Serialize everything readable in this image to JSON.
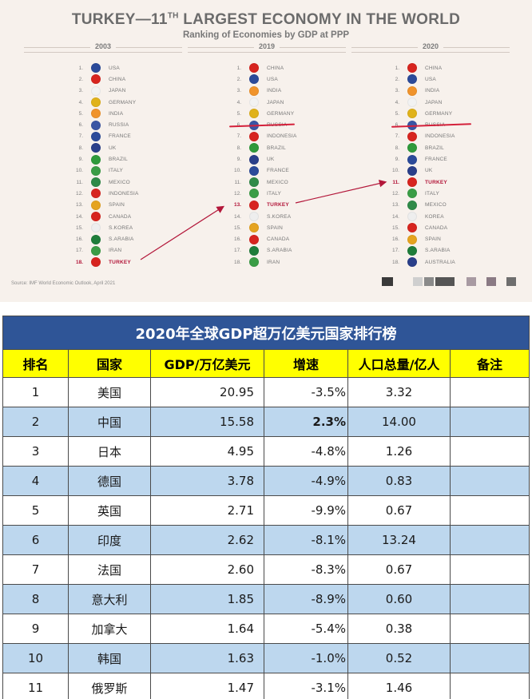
{
  "infographic": {
    "title_main": "TURKEY—11",
    "title_sup": "TH",
    "title_rest": " LARGEST ECONOMY IN THE WORLD",
    "subtitle": "Ranking of Economies by GDP at PPP",
    "source": "Source: IMF World Economic Outlook, April 2021",
    "columns": [
      {
        "year": "2003",
        "rows": [
          {
            "rank": "1.",
            "country": "USA",
            "flag": "#2b4a9a"
          },
          {
            "rank": "2.",
            "country": "CHINA",
            "flag": "#d7241f"
          },
          {
            "rank": "3.",
            "country": "JAPAN",
            "flag": "#f2f2f2"
          },
          {
            "rank": "4.",
            "country": "GERMANY",
            "flag": "#e0b21a"
          },
          {
            "rank": "5.",
            "country": "INDIA",
            "flag": "#f0932b"
          },
          {
            "rank": "6.",
            "country": "RUSSIA",
            "flag": "#3a55a4"
          },
          {
            "rank": "7.",
            "country": "FRANCE",
            "flag": "#2b4a9a"
          },
          {
            "rank": "8.",
            "country": "UK",
            "flag": "#2a3f8a"
          },
          {
            "rank": "9.",
            "country": "BRAZIL",
            "flag": "#2f9a3b"
          },
          {
            "rank": "10.",
            "country": "ITALY",
            "flag": "#3a9d46"
          },
          {
            "rank": "11.",
            "country": "MEXICO",
            "flag": "#2f8a48"
          },
          {
            "rank": "12.",
            "country": "INDONESIA",
            "flag": "#d7241f"
          },
          {
            "rank": "13.",
            "country": "SPAIN",
            "flag": "#e5a31f"
          },
          {
            "rank": "14.",
            "country": "CANADA",
            "flag": "#d7241f"
          },
          {
            "rank": "15.",
            "country": "S.KOREA",
            "flag": "#eeeeee"
          },
          {
            "rank": "16.",
            "country": "S.ARABIA",
            "flag": "#1e7d3a"
          },
          {
            "rank": "17.",
            "country": "IRAN",
            "flag": "#3a9d46"
          },
          {
            "rank": "18.",
            "country": "TURKEY",
            "flag": "#d7241f",
            "highlight": true
          }
        ]
      },
      {
        "year": "2019",
        "rows": [
          {
            "rank": "1.",
            "country": "CHINA",
            "flag": "#d7241f"
          },
          {
            "rank": "2.",
            "country": "USA",
            "flag": "#2b4a9a"
          },
          {
            "rank": "3.",
            "country": "INDIA",
            "flag": "#f0932b"
          },
          {
            "rank": "4.",
            "country": "JAPAN",
            "flag": "#f2f2f2"
          },
          {
            "rank": "5.",
            "country": "GERMANY",
            "flag": "#e0b21a"
          },
          {
            "rank": "6.",
            "country": "RUSSIA",
            "flag": "#3a55a4"
          },
          {
            "rank": "7.",
            "country": "INDONESIA",
            "flag": "#d7241f"
          },
          {
            "rank": "8.",
            "country": "BRAZIL",
            "flag": "#2f9a3b"
          },
          {
            "rank": "9.",
            "country": "UK",
            "flag": "#2a3f8a"
          },
          {
            "rank": "10.",
            "country": "FRANCE",
            "flag": "#2b4a9a"
          },
          {
            "rank": "11.",
            "country": "MEXICO",
            "flag": "#2f8a48"
          },
          {
            "rank": "12.",
            "country": "ITALY",
            "flag": "#3a9d46"
          },
          {
            "rank": "13.",
            "country": "TURKEY",
            "flag": "#d7241f",
            "highlight": true
          },
          {
            "rank": "14.",
            "country": "S.KOREA",
            "flag": "#eeeeee"
          },
          {
            "rank": "15.",
            "country": "SPAIN",
            "flag": "#e5a31f"
          },
          {
            "rank": "16.",
            "country": "CANADA",
            "flag": "#d7241f"
          },
          {
            "rank": "17.",
            "country": "S.ARABIA",
            "flag": "#1e7d3a"
          },
          {
            "rank": "18.",
            "country": "IRAN",
            "flag": "#3a9d46"
          }
        ]
      },
      {
        "year": "2020",
        "rows": [
          {
            "rank": "1.",
            "country": "CHINA",
            "flag": "#d7241f"
          },
          {
            "rank": "2.",
            "country": "USA",
            "flag": "#2b4a9a"
          },
          {
            "rank": "3.",
            "country": "INDIA",
            "flag": "#f0932b"
          },
          {
            "rank": "4.",
            "country": "JAPAN",
            "flag": "#f2f2f2"
          },
          {
            "rank": "5.",
            "country": "GERMANY",
            "flag": "#e0b21a"
          },
          {
            "rank": "6.",
            "country": "RUSSIA",
            "flag": "#3a55a4"
          },
          {
            "rank": "7.",
            "country": "INDONESIA",
            "flag": "#d7241f"
          },
          {
            "rank": "8.",
            "country": "BRAZIL",
            "flag": "#2f9a3b"
          },
          {
            "rank": "9.",
            "country": "FRANCE",
            "flag": "#2b4a9a"
          },
          {
            "rank": "10.",
            "country": "UK",
            "flag": "#2a3f8a"
          },
          {
            "rank": "11.",
            "country": "TURKEY",
            "flag": "#d7241f",
            "highlight": true
          },
          {
            "rank": "12.",
            "country": "ITALY",
            "flag": "#3a9d46"
          },
          {
            "rank": "13.",
            "country": "MEXICO",
            "flag": "#2f8a48"
          },
          {
            "rank": "14.",
            "country": "KOREA",
            "flag": "#eeeeee"
          },
          {
            "rank": "15.",
            "country": "CANADA",
            "flag": "#d7241f"
          },
          {
            "rank": "16.",
            "country": "SPAIN",
            "flag": "#e5a31f"
          },
          {
            "rank": "17.",
            "country": "S.ARABIA",
            "flag": "#1e7d3a"
          },
          {
            "rank": "18.",
            "country": "AUSTRALIA",
            "flag": "#2a3f8a"
          }
        ]
      }
    ]
  },
  "table": {
    "title": "2020年全球GDP超万亿美元国家排行榜",
    "headers": [
      "排名",
      "国家",
      "GDP/万亿美元",
      "增速",
      "人口总量/亿人",
      "备注"
    ],
    "rows": [
      {
        "rank": "1",
        "country": "美国",
        "gdp": "20.95",
        "growth": "-3.5%",
        "pop": "3.32",
        "note": ""
      },
      {
        "rank": "2",
        "country": "中国",
        "gdp": "15.58",
        "growth": "2.3%",
        "pop": "14.00",
        "note": "",
        "growth_highlight": true
      },
      {
        "rank": "3",
        "country": "日本",
        "gdp": "4.95",
        "growth": "-4.8%",
        "pop": "1.26",
        "note": ""
      },
      {
        "rank": "4",
        "country": "德国",
        "gdp": "3.78",
        "growth": "-4.9%",
        "pop": "0.83",
        "note": ""
      },
      {
        "rank": "5",
        "country": "英国",
        "gdp": "2.71",
        "growth": "-9.9%",
        "pop": "0.67",
        "note": ""
      },
      {
        "rank": "6",
        "country": "印度",
        "gdp": "2.62",
        "growth": "-8.1%",
        "pop": "13.24",
        "note": ""
      },
      {
        "rank": "7",
        "country": "法国",
        "gdp": "2.60",
        "growth": "-8.3%",
        "pop": "0.67",
        "note": ""
      },
      {
        "rank": "8",
        "country": "意大利",
        "gdp": "1.85",
        "growth": "-8.9%",
        "pop": "0.60",
        "note": ""
      },
      {
        "rank": "9",
        "country": "加拿大",
        "gdp": "1.64",
        "growth": "-5.4%",
        "pop": "0.38",
        "note": ""
      },
      {
        "rank": "10",
        "country": "韩国",
        "gdp": "1.63",
        "growth": "-1.0%",
        "pop": "0.52",
        "note": ""
      },
      {
        "rank": "11",
        "country": "俄罗斯",
        "gdp": "1.47",
        "growth": "-3.1%",
        "pop": "1.46",
        "note": ""
      }
    ]
  },
  "colors": {
    "accent_red": "#d4213b",
    "table_title_bg": "#2f5597",
    "table_header_bg": "#ffff00",
    "table_alt_row": "#bdd7ee",
    "growth_positive": "#e0201c"
  }
}
